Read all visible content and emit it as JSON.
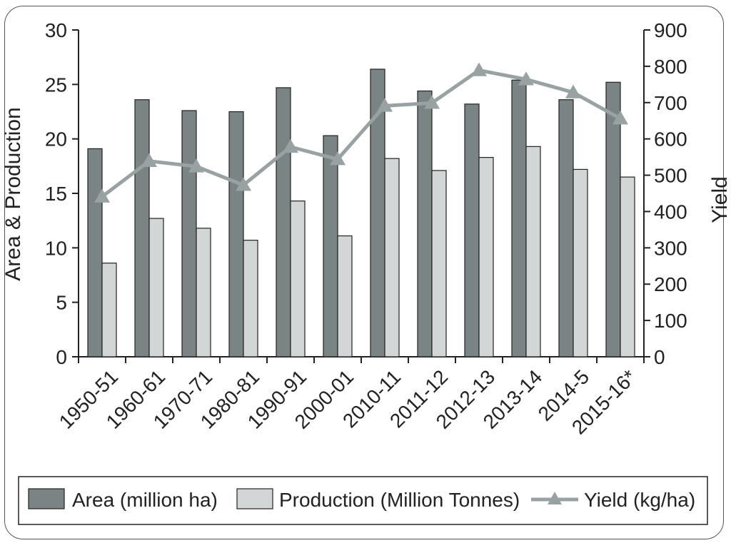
{
  "chart_data": {
    "type": "bar",
    "categories": [
      "1950-51",
      "1960-61",
      "1970-71",
      "1980-81",
      "1990-91",
      "2000-01",
      "2010-11",
      "2011-12",
      "2012-13",
      "2013-14",
      "2014-5",
      "2015-16*"
    ],
    "series": [
      {
        "name": "Area (million ha)",
        "type": "bar",
        "axis": "left",
        "color": "#7a8484",
        "values": [
          19.1,
          23.6,
          22.6,
          22.5,
          24.7,
          20.3,
          26.4,
          24.4,
          23.2,
          25.4,
          23.6,
          25.2
        ]
      },
      {
        "name": "Production (Million Tonnes)",
        "type": "bar",
        "axis": "left",
        "color": "#d2d6d6",
        "values": [
          8.6,
          12.7,
          11.8,
          10.7,
          14.3,
          11.1,
          18.2,
          17.1,
          18.3,
          19.3,
          17.2,
          16.5
        ]
      },
      {
        "name": "Yield (kg/ha)",
        "type": "line",
        "axis": "right",
        "color": "#98a2a2",
        "marker": "triangle",
        "values": [
          441,
          539,
          524,
          473,
          578,
          544,
          691,
          699,
          789,
          764,
          728,
          656
        ]
      }
    ],
    "ylabel": "Area & Production",
    "y2label": "Yield",
    "ylim": [
      0,
      30
    ],
    "y2lim": [
      0,
      900
    ],
    "yticks": [
      "0",
      "5",
      "10",
      "15",
      "20",
      "25",
      "30"
    ],
    "y2ticks": [
      "0",
      "100",
      "200",
      "300",
      "400",
      "500",
      "600",
      "700",
      "800",
      "900"
    ],
    "grid": false,
    "legend": "bottom"
  }
}
